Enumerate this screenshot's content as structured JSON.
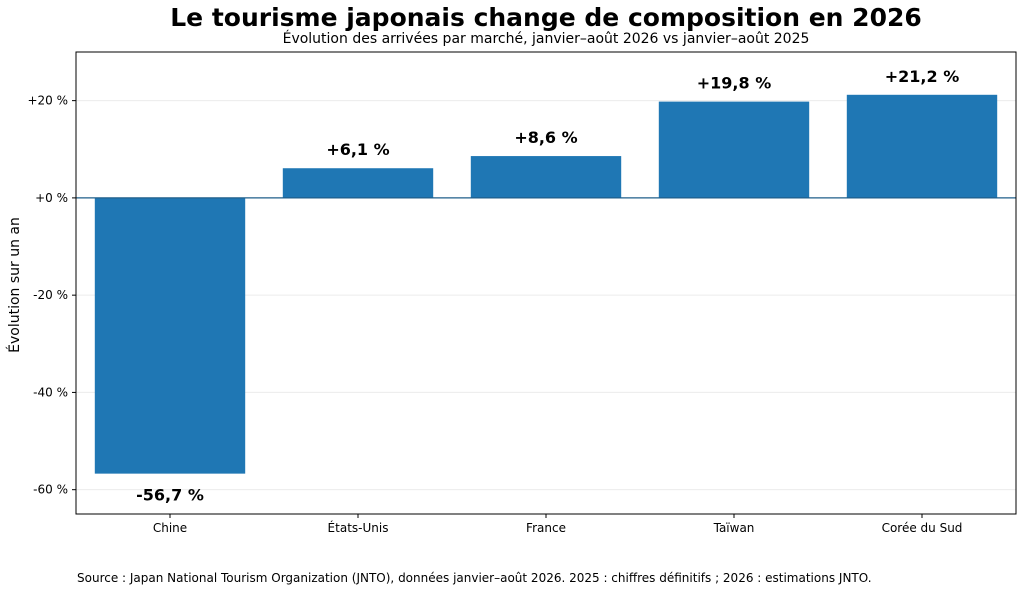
{
  "chart_data": {
    "type": "bar",
    "title": "Le tourisme japonais change de composition en 2026",
    "subtitle": "Évolution des arrivées par marché, janvier–août 2026 vs janvier–août 2025",
    "xlabel": "",
    "ylabel": "Évolution sur un an",
    "categories": [
      "Chine",
      "États-Unis",
      "France",
      "Taïwan",
      "Corée du Sud"
    ],
    "values": [
      -56.7,
      6.1,
      8.6,
      19.8,
      21.2
    ],
    "data_labels": [
      "-56,7 %",
      "+6,1 %",
      "+8,6 %",
      "+19,8 %",
      "+21,2 %"
    ],
    "ylim": [
      -65,
      30
    ],
    "yticks": [
      -60,
      -40,
      -20,
      0,
      20
    ],
    "ytick_labels": [
      "-60 %",
      "-40 %",
      "-20 %",
      "+0 %",
      "+20 %"
    ],
    "grid": true,
    "bar_color": "#1f77b4",
    "zero_line_color": "#1f5f8b",
    "source": "Source : Japan National Tourism Organization (JNTO), données janvier–août 2026. 2025 : chiffres définitifs ; 2026 : estimations JNTO."
  }
}
